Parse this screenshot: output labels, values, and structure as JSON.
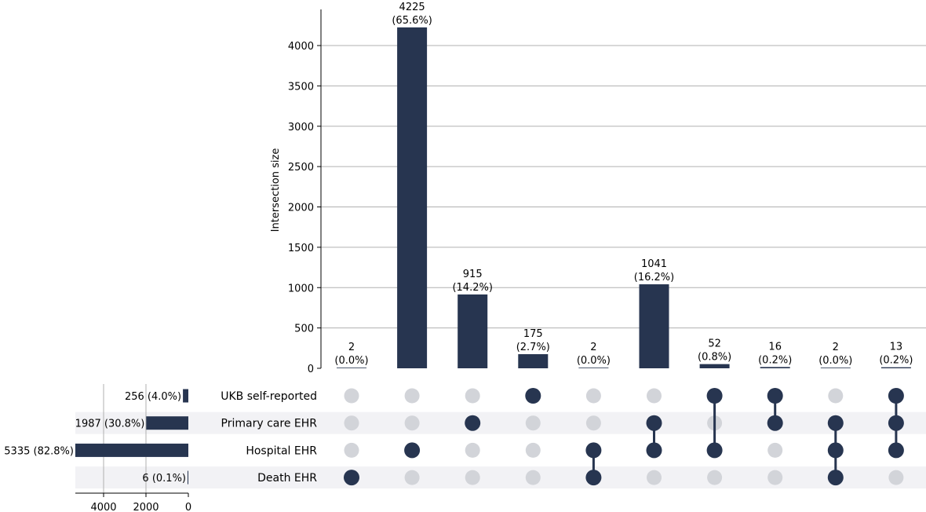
{
  "colors": {
    "bar": "#273550",
    "dot_active": "#273550",
    "dot_inactive": "#d2d4d9",
    "stripe": "#f2f2f5",
    "grid": "#b0b0b0",
    "axis": "#000000"
  },
  "chart_data": {
    "type": "bar",
    "subtype": "upset",
    "ylabel": "Intersection size",
    "ylim": [
      0,
      4400
    ],
    "yticks": [
      0,
      500,
      1000,
      1500,
      2000,
      2500,
      3000,
      3500,
      4000
    ],
    "sets": [
      {
        "name": "UKB self-reported",
        "size": 256,
        "label": "256 (4.0%)"
      },
      {
        "name": "Primary care EHR",
        "size": 1987,
        "label": "1987 (30.8%)"
      },
      {
        "name": "Hospital EHR",
        "size": 5335,
        "label": "5335 (82.8%)"
      },
      {
        "name": "Death EHR",
        "size": 6,
        "label": "6 (0.1%)"
      }
    ],
    "set_size_xticks": [
      4000,
      2000,
      0
    ],
    "set_size_xlim": [
      5600,
      0
    ],
    "intersections": [
      {
        "members": [
          3
        ],
        "size": 2,
        "count_label": "2",
        "pct_label": "(0.0%)"
      },
      {
        "members": [
          2
        ],
        "size": 4225,
        "count_label": "4225",
        "pct_label": "(65.6%)"
      },
      {
        "members": [
          1
        ],
        "size": 915,
        "count_label": "915",
        "pct_label": "(14.2%)"
      },
      {
        "members": [
          0
        ],
        "size": 175,
        "count_label": "175",
        "pct_label": "(2.7%)"
      },
      {
        "members": [
          2,
          3
        ],
        "size": 2,
        "count_label": "2",
        "pct_label": "(0.0%)"
      },
      {
        "members": [
          1,
          2
        ],
        "size": 1041,
        "count_label": "1041",
        "pct_label": "(16.2%)"
      },
      {
        "members": [
          0,
          2
        ],
        "size": 52,
        "count_label": "52",
        "pct_label": "(0.8%)"
      },
      {
        "members": [
          0,
          1
        ],
        "size": 16,
        "count_label": "16",
        "pct_label": "(0.2%)"
      },
      {
        "members": [
          1,
          2,
          3
        ],
        "size": 2,
        "count_label": "2",
        "pct_label": "(0.0%)"
      },
      {
        "members": [
          0,
          1,
          2
        ],
        "size": 13,
        "count_label": "13",
        "pct_label": "(0.2%)"
      }
    ],
    "grid": true
  }
}
